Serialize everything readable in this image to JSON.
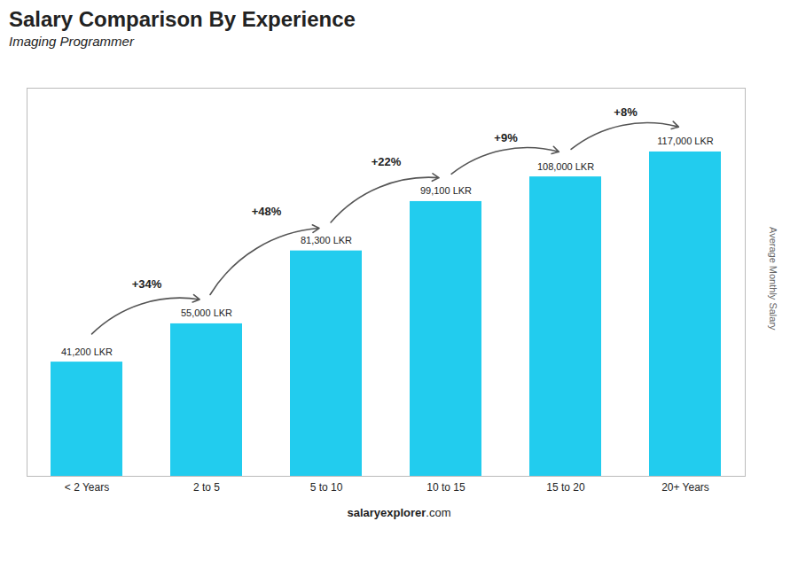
{
  "chart_data": {
    "type": "bar",
    "title": "Salary Comparison By Experience",
    "subtitle": "Imaging Programmer",
    "ylabel": "Average Monthly Salary",
    "categories": [
      "< 2 Years",
      "2 to 5",
      "5 to 10",
      "10 to 15",
      "15 to 20",
      "20+ Years"
    ],
    "values": [
      41200,
      55000,
      81300,
      99100,
      108000,
      117000
    ],
    "value_labels": [
      "41,200 LKR",
      "55,000 LKR",
      "81,300 LKR",
      "99,100 LKR",
      "108,000 LKR",
      "117,000 LKR"
    ],
    "data_labels": true,
    "color": "#22ccee",
    "ylim": [
      0,
      140000
    ],
    "tick_labels": "x",
    "annotations": [
      "+34%",
      "+48%",
      "+22%",
      "+9%",
      "+8%"
    ],
    "watermark": [
      "salary",
      "explorer",
      ".com"
    ]
  }
}
